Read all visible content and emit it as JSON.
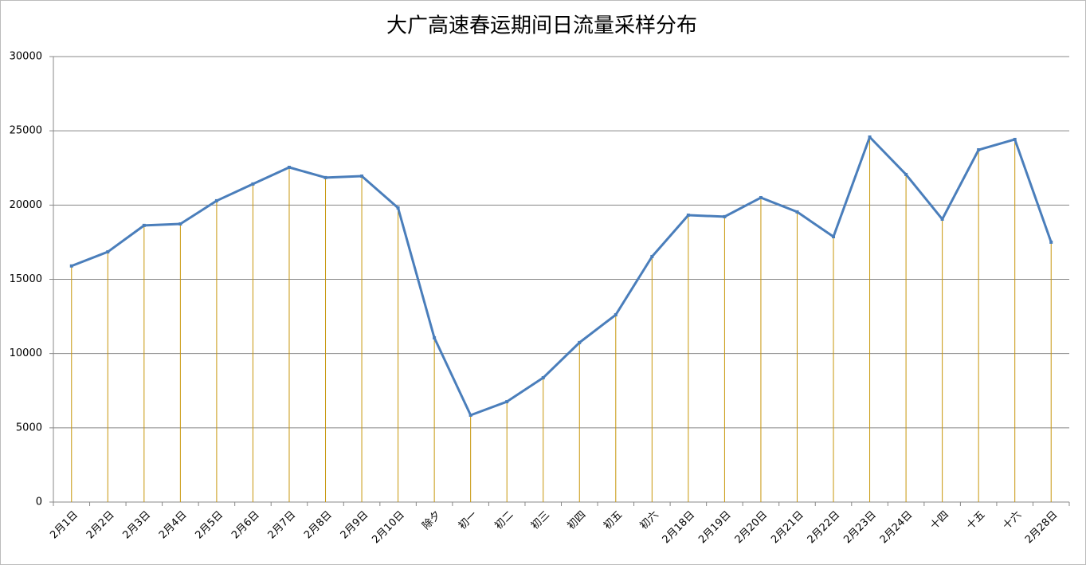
{
  "chart_data": {
    "type": "line",
    "title": "大广高速春运期间日流量采样分布",
    "categories": [
      "2月1日",
      "2月2日",
      "2月3日",
      "2月4日",
      "2月5日",
      "2月6日",
      "2月7日",
      "2月8日",
      "2月9日",
      "2月10日",
      "除夕",
      "初一",
      "初二",
      "初三",
      "初四",
      "初五",
      "初六",
      "2月18日",
      "2月19日",
      "2月20日",
      "2月21日",
      "2月22日",
      "2月23日",
      "2月24日",
      "十四",
      "十五",
      "十六",
      "2月28日"
    ],
    "series": [
      {
        "color": "#4a7ebb",
        "values": [
          15900,
          16850,
          18630,
          18730,
          20290,
          21420,
          22540,
          21850,
          21950,
          19810,
          11060,
          5850,
          6760,
          8370,
          10740,
          12610,
          16530,
          19320,
          19220,
          20500,
          19540,
          17870,
          24580,
          22060,
          19050,
          23720,
          24420,
          17500
        ]
      }
    ],
    "drop_line_color": "#c8960a",
    "ylim": [
      0,
      30000
    ],
    "yticks": [
      0,
      5000,
      10000,
      15000,
      20000,
      25000,
      30000
    ],
    "grid": true
  }
}
